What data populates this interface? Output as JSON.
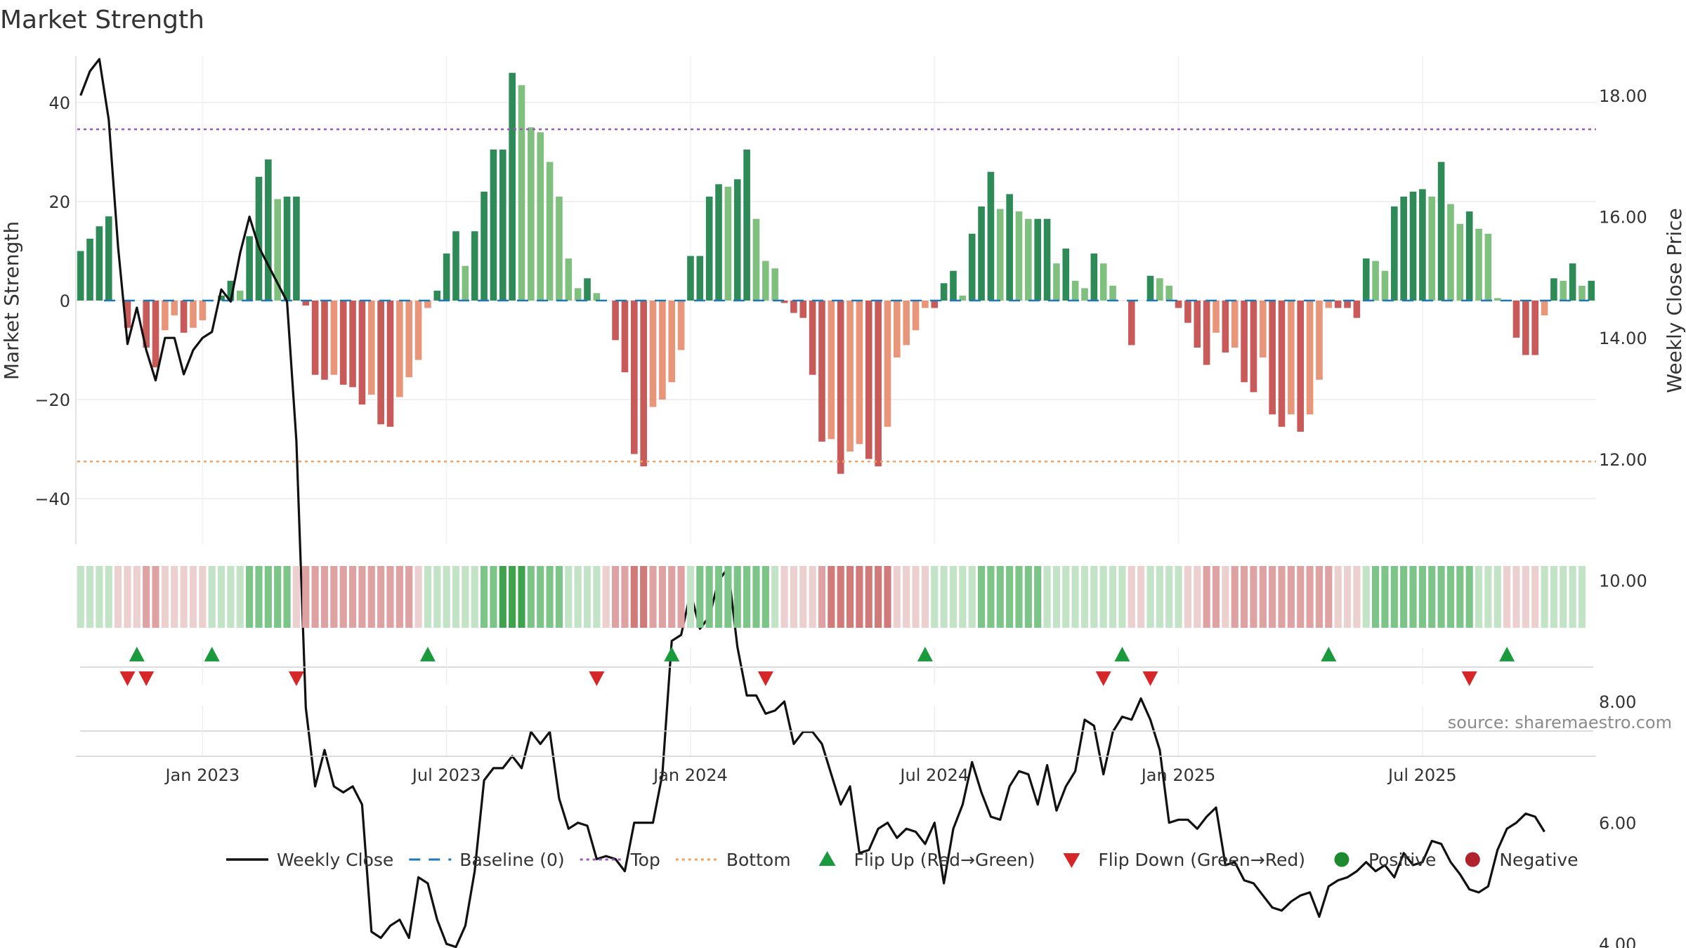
{
  "title": "Market Strength",
  "source": "source: sharemaestro.com",
  "chart_data": {
    "type": "bar",
    "title": "Market Strength",
    "ylabel_left": "Market Strength",
    "ylabel_right": "Weekly Close Price",
    "ylim_left": [
      -50,
      50
    ],
    "ylim_right": [
      3.0,
      19.0
    ],
    "yticks_left": [
      40,
      20,
      0,
      -20,
      -40
    ],
    "yticks_left_labels": [
      "40",
      "20",
      "0",
      "−20",
      "−40"
    ],
    "yticks_right": [
      18,
      16,
      14,
      12,
      10,
      8,
      6,
      4
    ],
    "yticks_right_labels": [
      "18.00",
      "16.00",
      "14.00",
      "12.00",
      "10.00",
      "8.00",
      "6.00",
      "4.00"
    ],
    "top_line": 34.6,
    "bottom_line": -32.5,
    "x_start": "2022-10-03",
    "x_end": "2025-10-06",
    "x_ticks": [
      {
        "label": "Jan 2023",
        "week": 13
      },
      {
        "label": "Jul 2023",
        "week": 39
      },
      {
        "label": "Jan 2024",
        "week": 65
      },
      {
        "label": "Jul 2024",
        "week": 91
      },
      {
        "label": "Jan 2025",
        "week": 117
      },
      {
        "label": "Jul 2025",
        "week": 143
      }
    ],
    "strength": [
      10,
      12.5,
      15,
      17,
      0,
      -5.5,
      0,
      -9.5,
      -13.5,
      -6,
      -3,
      -6.5,
      -5.5,
      -4,
      0,
      1,
      4,
      2,
      13,
      25,
      28.5,
      20.5,
      21,
      21,
      -1,
      -15,
      -16,
      -15,
      -17,
      -17.5,
      -21,
      -19,
      -25,
      -25.5,
      -19.5,
      -15.5,
      -12,
      -1.5,
      2,
      9.5,
      14,
      7,
      14,
      22,
      30.5,
      30.5,
      46,
      43.5,
      35,
      34,
      28,
      21,
      8.5,
      2.5,
      4.5,
      1.5,
      0,
      -8,
      -14.5,
      -31,
      -33.5,
      -21.5,
      -20,
      -16.5,
      -10,
      9,
      9,
      21,
      23.5,
      23,
      24.5,
      30.5,
      16.5,
      8,
      6.5,
      -0.5,
      -2.5,
      -3.5,
      -15,
      -28.5,
      -28,
      -35,
      -30.5,
      -29,
      -32,
      -33.5,
      -25.5,
      -11.5,
      -9,
      -6,
      -1.5,
      -1.5,
      3.5,
      6,
      1,
      13.5,
      19,
      26,
      18.5,
      21.5,
      18,
      16.5,
      16.5,
      16.5,
      7.5,
      10.5,
      4,
      2.5,
      9.5,
      7.5,
      3,
      0,
      -9,
      0,
      5,
      4.5,
      3,
      -1.5,
      -4.5,
      -9.5,
      -13,
      -6.5,
      -10.5,
      -9.5,
      -16.5,
      -18.5,
      -11.5,
      -23,
      -25.5,
      -23,
      -26.5,
      -23,
      -16,
      -1.5,
      -1.5,
      -1.5,
      -3.5,
      8.5,
      8,
      6,
      19,
      21,
      22,
      22.5,
      21,
      28,
      19.5,
      15.5,
      18,
      14.5,
      13.5,
      0.5,
      0,
      -7.5,
      -11,
      -11,
      -3,
      4.5,
      4,
      7.5,
      3,
      4
    ],
    "weekly_close": [
      18.0,
      18.4,
      18.6,
      17.6,
      15.5,
      13.9,
      14.5,
      13.8,
      13.3,
      14.0,
      14.0,
      13.4,
      13.8,
      14.0,
      14.1,
      14.8,
      14.6,
      15.4,
      16.0,
      15.5,
      15.2,
      14.9,
      14.6,
      12.3,
      7.9,
      6.6,
      7.2,
      6.6,
      6.5,
      6.6,
      6.3,
      4.2,
      4.1,
      4.3,
      4.4,
      4.1,
      5.1,
      5.0,
      4.4,
      4.0,
      3.95,
      4.3,
      5.2,
      6.7,
      6.9,
      6.9,
      7.1,
      6.9,
      7.5,
      7.3,
      7.5,
      6.4,
      5.9,
      6.0,
      5.95,
      5.4,
      5.45,
      5.4,
      5.2,
      6.0,
      6.0,
      6.0,
      6.8,
      9.0,
      9.1,
      9.8,
      9.2,
      9.4,
      10.0,
      10.2,
      8.9,
      8.1,
      8.1,
      7.8,
      7.85,
      8.0,
      7.3,
      7.5,
      7.5,
      7.3,
      6.8,
      6.3,
      6.6,
      5.5,
      5.55,
      5.9,
      6.0,
      5.75,
      5.9,
      5.85,
      5.65,
      6.0,
      5.0,
      5.9,
      6.3,
      7.0,
      6.5,
      6.1,
      6.05,
      6.6,
      6.85,
      6.8,
      6.3,
      6.95,
      6.2,
      6.6,
      6.85,
      7.7,
      7.6,
      6.8,
      7.5,
      7.75,
      7.7,
      8.05,
      7.7,
      7.2,
      6.0,
      6.05,
      6.05,
      5.9,
      6.1,
      6.25,
      5.3,
      5.35,
      5.05,
      5.0,
      4.8,
      4.6,
      4.55,
      4.7,
      4.8,
      4.85,
      4.45,
      4.95,
      5.05,
      5.1,
      5.2,
      5.35,
      5.2,
      5.3,
      5.1,
      5.5,
      5.3,
      5.35,
      5.7,
      5.65,
      5.35,
      5.15,
      4.9,
      4.85,
      4.95,
      5.55,
      5.9,
      6.0,
      6.15,
      6.1,
      5.85
    ],
    "band_strength": [
      1,
      1,
      1,
      1,
      -1,
      -1,
      -1,
      -2,
      -2,
      -1,
      -1,
      -1,
      -1,
      -1,
      1,
      1,
      1,
      1,
      2,
      2,
      2,
      2,
      2,
      -1,
      -2,
      -2,
      -2,
      -2,
      -2,
      -2,
      -2,
      -2,
      -2,
      -2,
      -2,
      -2,
      -1,
      1,
      1,
      1,
      1,
      1,
      1,
      2,
      2,
      3,
      3,
      3,
      2,
      2,
      2,
      2,
      1,
      1,
      1,
      1,
      -1,
      -2,
      -2,
      -3,
      -3,
      -2,
      -2,
      -2,
      -2,
      1,
      2,
      2,
      2,
      2,
      2,
      2,
      2,
      2,
      1,
      -1,
      -1,
      -1,
      -1,
      -2,
      -3,
      -3,
      -3,
      -3,
      -3,
      -3,
      -3,
      -1,
      -1,
      -1,
      -1,
      1,
      1,
      1,
      1,
      1,
      2,
      2,
      2,
      2,
      2,
      2,
      2,
      1,
      1,
      1,
      1,
      1,
      1,
      1,
      1,
      1,
      -1,
      -1,
      1,
      1,
      1,
      1,
      -1,
      -1,
      -2,
      -2,
      -1,
      -2,
      -2,
      -2,
      -2,
      -2,
      -2,
      -2,
      -2,
      -2,
      -2,
      -2,
      -1,
      -1,
      -1,
      1,
      2,
      2,
      2,
      2,
      2,
      2,
      2,
      2,
      2,
      2,
      2,
      1,
      1,
      1,
      -1,
      -1,
      -1,
      -1,
      1,
      1,
      1,
      1,
      1
    ],
    "flip_up_weeks": [
      6,
      14,
      37,
      63,
      90,
      111,
      133,
      152
    ],
    "flip_down_weeks": [
      5,
      7,
      23,
      55,
      73,
      109,
      114,
      148
    ],
    "legend": [
      {
        "label": "Weekly Close",
        "kind": "line",
        "color": "#111111"
      },
      {
        "label": "Baseline (0)",
        "kind": "dash",
        "color": "#1f77b4"
      },
      {
        "label": "Top",
        "kind": "dot",
        "color": "#9b59b6"
      },
      {
        "label": "Bottom",
        "kind": "dot",
        "color": "#f0a060"
      },
      {
        "label": "Flip Up (Red→Green)",
        "kind": "tri-up",
        "color": "#1a9a3c"
      },
      {
        "label": "Flip Down (Green→Red)",
        "kind": "tri-down",
        "color": "#d62728"
      },
      {
        "label": "Positive",
        "kind": "circle",
        "color": "#1e8a2e"
      },
      {
        "label": "Negative",
        "kind": "circle",
        "color": "#b0222c"
      }
    ],
    "colors": {
      "pos_dark": "#2e8b57",
      "pos_light": "#7fc07f",
      "neg_dark": "#c85a5a",
      "neg_light": "#e8957a",
      "baseline": "#1f77b4",
      "top": "#9b59b6",
      "bottom": "#f0a060",
      "close": "#111111"
    }
  }
}
